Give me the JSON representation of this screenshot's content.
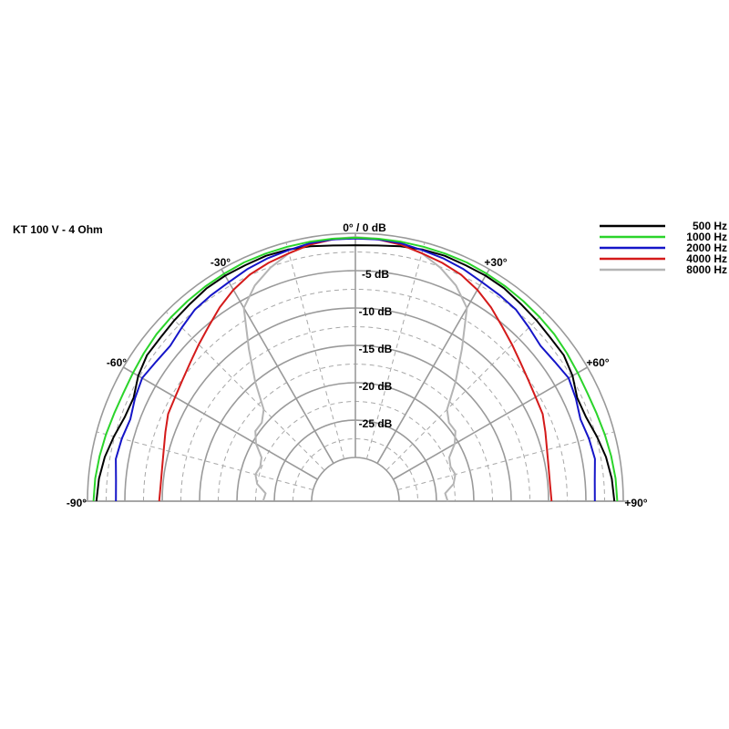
{
  "chart_data": {
    "type": "polar",
    "title": "KT 100 V - 4 Ohm",
    "angle_range_deg": [
      -90,
      90
    ],
    "radial_range_db": [
      -30,
      0
    ],
    "grid": true,
    "legend_position": "top-right",
    "angle_labels": [
      {
        "angle": 0,
        "text": "0° / 0 dB"
      },
      {
        "angle": -30,
        "text": "-30°"
      },
      {
        "angle": 30,
        "text": "+30°"
      },
      {
        "angle": -60,
        "text": "-60°"
      },
      {
        "angle": 60,
        "text": "+60°"
      },
      {
        "angle": -90,
        "text": "-90°"
      },
      {
        "angle": 90,
        "text": "+90°"
      }
    ],
    "db_labels": [
      {
        "db": -5,
        "text": "-5 dB"
      },
      {
        "db": -10,
        "text": "-10 dB"
      },
      {
        "db": -15,
        "text": "-15 dB"
      },
      {
        "db": -20,
        "text": "-20 dB"
      },
      {
        "db": -25,
        "text": "-25 dB"
      }
    ],
    "series": [
      {
        "name": "500 Hz",
        "color": "#000000",
        "angles": [
          -90,
          -85,
          -80,
          -75,
          -70,
          -65,
          -60,
          -55,
          -50,
          -45,
          -40,
          -35,
          -30,
          -25,
          -20,
          -15,
          -10,
          -5,
          0,
          5,
          10,
          15,
          20,
          25,
          30,
          35,
          40,
          45,
          50,
          55,
          60,
          65,
          70,
          75,
          80,
          85,
          90
        ],
        "db": [
          -1.2,
          -1.4,
          -1.8,
          -2.4,
          -3.0,
          -3.1,
          -2.3,
          -1.8,
          -1.8,
          -1.6,
          -1.4,
          -1.1,
          -1.0,
          -1.0,
          -0.9,
          -1.0,
          -1.2,
          -1.5,
          -1.6,
          -1.5,
          -1.2,
          -1.0,
          -0.9,
          -1.0,
          -1.0,
          -1.1,
          -1.4,
          -1.6,
          -1.8,
          -1.8,
          -2.3,
          -3.1,
          -3.0,
          -2.4,
          -1.8,
          -1.4,
          -1.2
        ]
      },
      {
        "name": "1000 Hz",
        "color": "#2bd42b",
        "angles": [
          -90,
          -85,
          -80,
          -75,
          -70,
          -65,
          -60,
          -55,
          -50,
          -45,
          -40,
          -35,
          -30,
          -25,
          -20,
          -15,
          -10,
          -5,
          0,
          5,
          10,
          15,
          20,
          25,
          30,
          35,
          40,
          45,
          50,
          55,
          60,
          65,
          70,
          75,
          80,
          85,
          90
        ],
        "db": [
          -0.8,
          -0.9,
          -1.1,
          -1.3,
          -1.5,
          -1.6,
          -1.5,
          -1.3,
          -1.1,
          -1.0,
          -0.9,
          -0.8,
          -0.7,
          -0.6,
          -0.6,
          -0.6,
          -0.6,
          -0.6,
          -0.6,
          -0.6,
          -0.6,
          -0.6,
          -0.6,
          -0.6,
          -0.7,
          -0.8,
          -0.9,
          -1.0,
          -1.1,
          -1.3,
          -1.5,
          -1.6,
          -1.5,
          -1.3,
          -1.1,
          -0.9,
          -0.8
        ]
      },
      {
        "name": "2000 Hz",
        "color": "#1515c8",
        "angles": [
          -90,
          -85,
          -80,
          -75,
          -70,
          -65,
          -60,
          -55,
          -50,
          -45,
          -40,
          -35,
          -30,
          -25,
          -20,
          -15,
          -10,
          -5,
          0,
          5,
          10,
          15,
          20,
          25,
          30,
          35,
          40,
          45,
          50,
          55,
          60,
          65,
          70,
          75,
          80,
          85,
          90
        ],
        "db": [
          -3.8,
          -3.7,
          -3.3,
          -3.5,
          -3.8,
          -3.3,
          -2.9,
          -3.3,
          -3.5,
          -3.0,
          -2.4,
          -2.2,
          -2.0,
          -1.6,
          -1.3,
          -1.1,
          -0.8,
          -0.7,
          -0.7,
          -0.7,
          -0.8,
          -1.1,
          -1.3,
          -1.6,
          -2.0,
          -2.2,
          -2.4,
          -3.0,
          -3.5,
          -3.3,
          -2.9,
          -3.3,
          -3.8,
          -3.5,
          -3.3,
          -3.7,
          -3.8
        ]
      },
      {
        "name": "4000 Hz",
        "color": "#d41a1a",
        "angles": [
          -90,
          -85,
          -80,
          -75,
          -70,
          -65,
          -60,
          -55,
          -50,
          -45,
          -40,
          -35,
          -30,
          -25,
          -20,
          -15,
          -10,
          -5,
          0,
          5,
          10,
          15,
          20,
          25,
          30,
          35,
          40,
          45,
          50,
          55,
          60,
          65,
          70,
          75,
          80,
          85,
          90
        ],
        "db": [
          -9.6,
          -9.7,
          -9.6,
          -9.3,
          -8.8,
          -8.2,
          -8.0,
          -7.6,
          -7.0,
          -6.2,
          -5.3,
          -4.2,
          -3.2,
          -2.4,
          -1.9,
          -1.5,
          -1.0,
          -0.7,
          -0.6,
          -0.7,
          -1.0,
          -1.5,
          -1.9,
          -2.4,
          -3.2,
          -4.2,
          -5.3,
          -6.2,
          -7.0,
          -7.6,
          -8.0,
          -8.2,
          -8.8,
          -9.3,
          -9.6,
          -9.7,
          -9.6
        ]
      },
      {
        "name": "8000 Hz",
        "color": "#b4b4b4",
        "angles": [
          -90,
          -85,
          -80,
          -75,
          -70,
          -65,
          -60,
          -55,
          -50,
          -45,
          -40,
          -35,
          -30,
          -25,
          -20,
          -15,
          -10,
          -5,
          0,
          5,
          10,
          15,
          20,
          25,
          30,
          35,
          40,
          45,
          50,
          55,
          60,
          65,
          70,
          75,
          80,
          85,
          90
        ],
        "db": [
          -23.5,
          -23.8,
          -22.5,
          -22.0,
          -22.3,
          -22.0,
          -20.5,
          -19.5,
          -19.5,
          -18.5,
          -15.0,
          -11.0,
          -6.0,
          -4.0,
          -2.6,
          -1.5,
          -0.9,
          -0.6,
          -0.5,
          -0.6,
          -0.9,
          -1.5,
          -2.6,
          -4.0,
          -6.0,
          -11.0,
          -15.0,
          -18.5,
          -19.5,
          -19.5,
          -20.5,
          -22.0,
          -22.3,
          -22.0,
          -22.5,
          -23.8,
          -23.5
        ]
      }
    ]
  }
}
